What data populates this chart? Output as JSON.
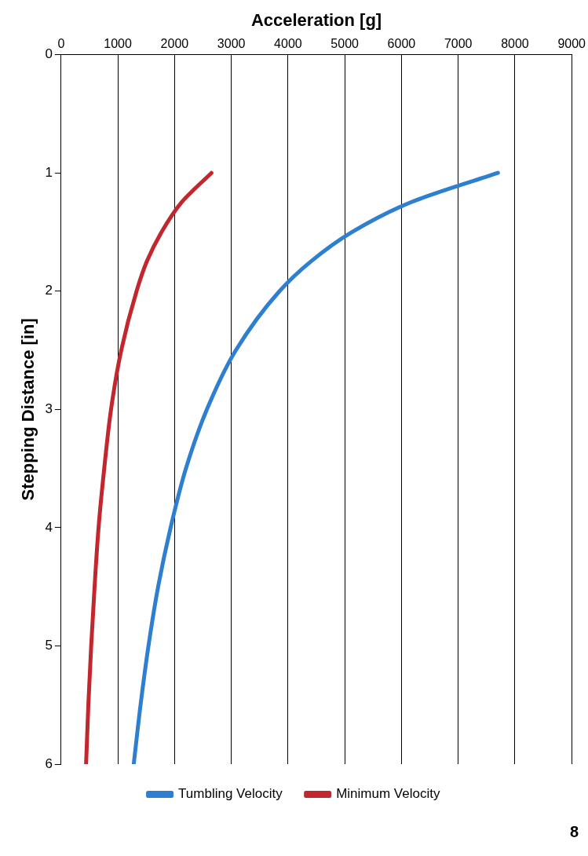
{
  "chart_data": {
    "type": "line",
    "xlabel": "Acceleration [g]",
    "ylabel": "Stepping Distance [in]",
    "series": [
      {
        "name": "Tumbling Velocity",
        "color": "#2f7fd0",
        "x": [
          7700,
          6160,
          5130,
          4400,
          3850,
          3080,
          2570,
          2200,
          1930,
          1710,
          1540,
          1400,
          1280
        ],
        "values": [
          1,
          1.25,
          1.5,
          1.75,
          2,
          2.5,
          3,
          3.5,
          4,
          4.5,
          5,
          5.5,
          6
        ]
      },
      {
        "name": "Minimum Velocity",
        "color": "#c1272d",
        "x": [
          2650,
          2120,
          1770,
          1510,
          1330,
          1060,
          880,
          760,
          660,
          590,
          530,
          480,
          440
        ],
        "values": [
          1,
          1.25,
          1.5,
          1.75,
          2,
          2.5,
          3,
          3.5,
          4,
          4.5,
          5,
          5.5,
          6
        ]
      }
    ],
    "xlim": [
      0,
      9000
    ],
    "xticks": [
      0,
      1000,
      2000,
      3000,
      4000,
      5000,
      6000,
      7000,
      8000,
      9000
    ],
    "ylim": [
      6,
      0
    ],
    "yticks": [
      0,
      1,
      2,
      3,
      4,
      5,
      6
    ],
    "grid": "x",
    "legend": "bottom",
    "marker": "none",
    "line_style": "solid",
    "annotations": [
      "8"
    ]
  }
}
